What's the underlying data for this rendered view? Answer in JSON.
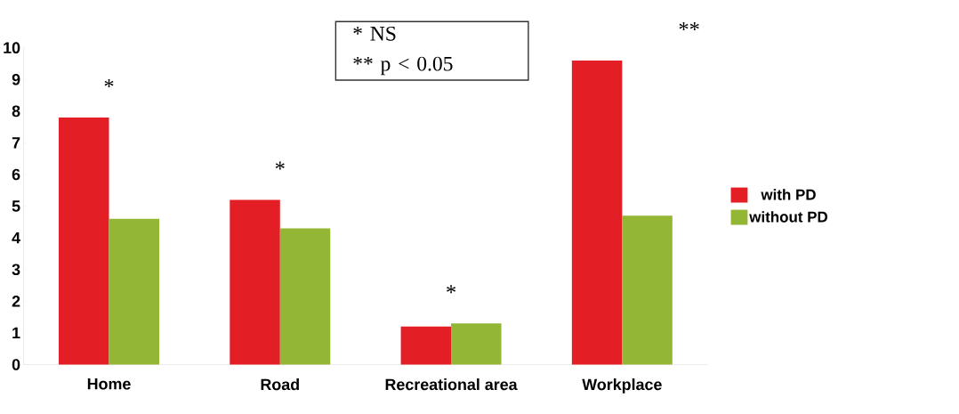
{
  "chart_data": {
    "type": "bar",
    "categories": [
      "Home",
      "Road",
      "Recreational area",
      "Workplace"
    ],
    "series": [
      {
        "name": "with PD",
        "color": "#e31e24",
        "values": [
          7.8,
          5.2,
          1.2,
          9.6
        ]
      },
      {
        "name": "without PD",
        "color": "#93b634",
        "values": [
          4.6,
          4.3,
          1.3,
          4.7
        ]
      }
    ],
    "ylim": [
      0,
      10
    ],
    "yticks": [
      0,
      1,
      2,
      3,
      4,
      5,
      6,
      7,
      8,
      9,
      10
    ],
    "legend": "right",
    "grid": false,
    "annotations": [
      "* NS",
      "** p < 0.05",
      "*",
      "*",
      "*",
      "**"
    ]
  }
}
